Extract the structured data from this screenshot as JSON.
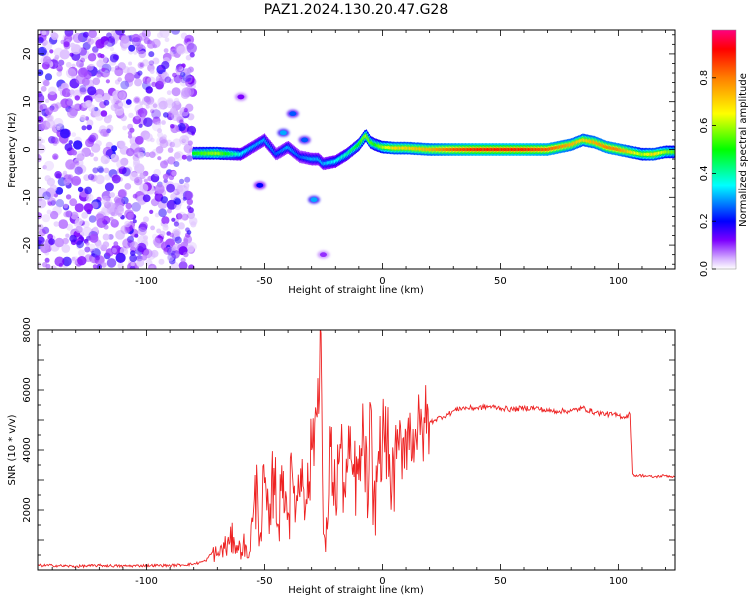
{
  "title": "PAZ1.2024.130.20.47.G28",
  "chart_data": [
    {
      "type": "heatmap",
      "xlabel": "Height of straight line (km)",
      "ylabel": "Frequency (Hz)",
      "xlim": [
        -146,
        124
      ],
      "ylim": [
        -25,
        25
      ],
      "xticks": [
        -100,
        -50,
        0,
        50,
        100
      ],
      "yticks": [
        -20,
        -10,
        0,
        10,
        20
      ],
      "colorbar": {
        "label": "Normalized spectral amplitude",
        "range": [
          0,
          1
        ],
        "ticks": [
          0.0,
          0.2,
          0.4,
          0.6,
          0.8
        ],
        "colormap": "rainbow"
      },
      "noise_region": {
        "x": [
          -146,
          -80
        ],
        "y": [
          -25,
          25
        ],
        "level": 0.15
      },
      "ridge": {
        "x": [
          -80,
          -70,
          -60,
          -55,
          -50,
          -45,
          -40,
          -35,
          -30,
          -27,
          -25,
          -20,
          -15,
          -10,
          -7,
          -5,
          -3,
          0,
          5,
          10,
          20,
          30,
          40,
          50,
          60,
          70,
          75,
          80,
          85,
          90,
          95,
          100,
          105,
          110,
          115,
          120,
          124
        ],
        "y": [
          -0.8,
          -0.8,
          -1.0,
          0.5,
          2.0,
          -1.0,
          0.5,
          -1.5,
          -2.0,
          -2.0,
          -3.0,
          -2.5,
          -1.0,
          1.0,
          3.0,
          1.5,
          1.0,
          0.5,
          0.3,
          0.3,
          0.0,
          0.0,
          0.0,
          0.0,
          0.0,
          0.0,
          0.5,
          1.0,
          2.0,
          1.5,
          0.5,
          0.0,
          -0.5,
          -1.0,
          -1.0,
          -0.5,
          -0.5
        ],
        "amplitude": [
          0.5,
          0.6,
          0.35,
          0.3,
          0.3,
          0.25,
          0.3,
          0.25,
          0.3,
          0.3,
          0.3,
          0.35,
          0.4,
          0.5,
          0.6,
          0.55,
          0.5,
          0.6,
          0.7,
          0.7,
          0.75,
          0.85,
          0.9,
          0.9,
          0.9,
          0.85,
          0.8,
          0.75,
          0.7,
          0.75,
          0.8,
          0.8,
          0.7,
          0.6,
          0.7,
          0.6,
          0.55
        ]
      },
      "blobs": [
        {
          "x": -38,
          "y": 7.5,
          "amp": 0.25
        },
        {
          "x": -29,
          "y": -10.5,
          "amp": 0.3
        },
        {
          "x": -52,
          "y": -7.5,
          "amp": 0.2
        },
        {
          "x": -42,
          "y": 3.5,
          "amp": 0.3
        },
        {
          "x": -33,
          "y": 2.0,
          "amp": 0.25
        },
        {
          "x": -60,
          "y": 11.0,
          "amp": 0.12
        },
        {
          "x": -25,
          "y": -22.0,
          "amp": 0.1
        }
      ]
    },
    {
      "type": "line",
      "xlabel": "Height of straight line (km)",
      "ylabel": "SNR (10 * v/v)",
      "xlim": [
        -146,
        124
      ],
      "ylim": [
        0,
        8000
      ],
      "xticks": [
        -100,
        -50,
        0,
        50,
        100
      ],
      "yticks": [
        2000,
        4000,
        6000,
        8000
      ],
      "color": "#ee2222",
      "series": [
        {
          "x": [
            -146,
            -140,
            -130,
            -120,
            -110,
            -100,
            -90,
            -85,
            -80,
            -75,
            -72,
            -70,
            -68,
            -65,
            -63,
            -61,
            -59,
            -57,
            -55,
            -53,
            -52,
            -50,
            -48,
            -46,
            -44,
            -42,
            -40,
            -38,
            -36,
            -34,
            -32,
            -30,
            -28,
            -26,
            -25,
            -24,
            -22,
            -20,
            -18,
            -16,
            -14,
            -12,
            -10,
            -8,
            -6,
            -5,
            -4,
            -2,
            0,
            2,
            4,
            6,
            8,
            10,
            12,
            14,
            16,
            18,
            20,
            22,
            25,
            28,
            30,
            33,
            36,
            40,
            45,
            50,
            55,
            60,
            65,
            70,
            75,
            80,
            85,
            90,
            95,
            100,
            103,
            105,
            106,
            107,
            110,
            115,
            120,
            124
          ],
          "y": [
            150,
            150,
            120,
            150,
            130,
            150,
            150,
            170,
            200,
            300,
            600,
            500,
            700,
            850,
            1100,
            650,
            900,
            400,
            1600,
            2800,
            1100,
            2900,
            1200,
            3400,
            1500,
            3300,
            1900,
            3000,
            2300,
            3700,
            2200,
            4000,
            5200,
            7900,
            1200,
            600,
            4100,
            2400,
            4200,
            2600,
            3700,
            3100,
            3000,
            4500,
            2200,
            5500,
            1500,
            3500,
            4500,
            4300,
            2700,
            3700,
            4200,
            4600,
            4500,
            4700,
            4500,
            4900,
            4900,
            5000,
            5100,
            5200,
            5300,
            5400,
            5400,
            5400,
            5450,
            5400,
            5350,
            5400,
            5400,
            5300,
            5300,
            5300,
            5400,
            5250,
            5200,
            5150,
            5100,
            5200,
            3200,
            3150,
            3150,
            3100,
            3150,
            3100
          ]
        }
      ]
    }
  ]
}
